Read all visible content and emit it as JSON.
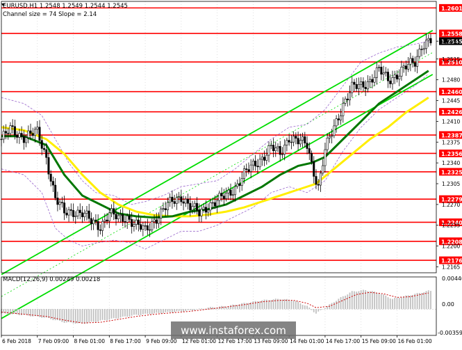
{
  "header": {
    "symbol_line": "EURUSD,H1  1.2548 1.2549 1.2544 1.2545",
    "channel_line": "Channel size = 74 Slope = 2.14"
  },
  "macd": {
    "label": "MACD(12,26,9) 0.00249 0.00218",
    "scale": [
      "0.00440",
      "0.00",
      "-0.00359"
    ]
  },
  "watermark": "www.instaforex.com",
  "colors": {
    "level_line": "#ff0000",
    "channel": "#00dd00",
    "ma_fast": "#007700",
    "ma_slow": "#ffee00",
    "envelope": "#9966cc",
    "candles": "#000000",
    "macd_hist": "#c0c0c0",
    "macd_signal": "#cc0000"
  },
  "chart_data": {
    "type": "candlestick",
    "symbol": "EURUSD",
    "timeframe": "H1",
    "ylim": [
      1.2155,
      1.2612
    ],
    "price_labels": [
      "1.2545",
      "1.2515",
      "1.2480",
      "1.2445",
      "1.2410",
      "1.2375",
      "1.2340",
      "1.2305",
      "1.2270",
      "1.2235",
      "1.2200",
      "1.2165"
    ],
    "level_lines": [
      {
        "value": 1.2601,
        "label": "1.2601"
      },
      {
        "value": 1.2558,
        "label": "1.2558"
      },
      {
        "value": 1.251,
        "label": "1.2510"
      },
      {
        "value": 1.246,
        "label": "1.2460"
      },
      {
        "value": 1.2426,
        "label": "1.2426"
      },
      {
        "value": 1.2387,
        "label": "1.2387"
      },
      {
        "value": 1.2356,
        "label": "1.2356"
      },
      {
        "value": 1.2325,
        "label": "1.2325"
      },
      {
        "value": 1.2279,
        "label": "1.2279"
      },
      {
        "value": 1.224,
        "label": "1.2240"
      },
      {
        "value": 1.2208,
        "label": "1.2208"
      },
      {
        "value": 1.2176,
        "label": "1.2176"
      }
    ],
    "current_price": {
      "value": 1.2545,
      "label": "1.2545"
    },
    "x_labels": [
      "6 Feb 2018",
      "7 Feb 09:00",
      "8 Feb 01:00",
      "8 Feb 17:00",
      "9 Feb 09:00",
      "12 Feb 01:00",
      "12 Feb 17:00",
      "13 Feb 09:00",
      "14 Feb 01:00",
      "14 Feb 17:00",
      "15 Feb 09:00",
      "16 Feb 01:00"
    ],
    "x_label_bars": [
      0,
      16,
      32,
      48,
      64,
      80,
      96,
      112,
      128,
      144,
      160,
      176
    ],
    "channel": {
      "start_bar": 0,
      "end_bar": 190,
      "start_mid": 1.2115,
      "end_mid": 1.2522,
      "half_width": 0.0037
    },
    "close_path": [
      [
        0,
        1.238
      ],
      [
        4,
        1.2395
      ],
      [
        10,
        1.2385
      ],
      [
        16,
        1.239
      ],
      [
        20,
        1.235
      ],
      [
        24,
        1.228
      ],
      [
        28,
        1.2255
      ],
      [
        32,
        1.226
      ],
      [
        36,
        1.2255
      ],
      [
        40,
        1.224
      ],
      [
        44,
        1.2235
      ],
      [
        48,
        1.2255
      ],
      [
        52,
        1.2245
      ],
      [
        56,
        1.225
      ],
      [
        60,
        1.2235
      ],
      [
        64,
        1.2225
      ],
      [
        68,
        1.2245
      ],
      [
        72,
        1.226
      ],
      [
        76,
        1.2275
      ],
      [
        80,
        1.2285
      ],
      [
        84,
        1.2265
      ],
      [
        88,
        1.2255
      ],
      [
        92,
        1.227
      ],
      [
        96,
        1.2275
      ],
      [
        100,
        1.2285
      ],
      [
        104,
        1.23
      ],
      [
        108,
        1.232
      ],
      [
        112,
        1.2335
      ],
      [
        116,
        1.235
      ],
      [
        120,
        1.2365
      ],
      [
        124,
        1.2355
      ],
      [
        128,
        1.2385
      ],
      [
        132,
        1.2375
      ],
      [
        136,
        1.237
      ],
      [
        138,
        1.234
      ],
      [
        141,
        1.23
      ],
      [
        144,
        1.236
      ],
      [
        148,
        1.24
      ],
      [
        152,
        1.244
      ],
      [
        156,
        1.2465
      ],
      [
        160,
        1.247
      ],
      [
        164,
        1.248
      ],
      [
        168,
        1.2495
      ],
      [
        172,
        1.248
      ],
      [
        176,
        1.249
      ],
      [
        180,
        1.25
      ],
      [
        184,
        1.251
      ],
      [
        187,
        1.254
      ],
      [
        190,
        1.2545
      ]
    ],
    "ma_fast_path": [
      [
        0,
        1.2385
      ],
      [
        10,
        1.2385
      ],
      [
        20,
        1.237
      ],
      [
        28,
        1.232
      ],
      [
        36,
        1.2285
      ],
      [
        44,
        1.227
      ],
      [
        52,
        1.2255
      ],
      [
        60,
        1.225
      ],
      [
        68,
        1.2248
      ],
      [
        76,
        1.225
      ],
      [
        84,
        1.2258
      ],
      [
        92,
        1.2262
      ],
      [
        100,
        1.227
      ],
      [
        108,
        1.2285
      ],
      [
        116,
        1.23
      ],
      [
        124,
        1.232
      ],
      [
        132,
        1.2335
      ],
      [
        138,
        1.234
      ],
      [
        144,
        1.235
      ],
      [
        152,
        1.238
      ],
      [
        160,
        1.241
      ],
      [
        168,
        1.244
      ],
      [
        176,
        1.246
      ],
      [
        184,
        1.248
      ],
      [
        190,
        1.2495
      ]
    ],
    "ma_slow_path": [
      [
        0,
        1.24
      ],
      [
        10,
        1.2395
      ],
      [
        20,
        1.238
      ],
      [
        28,
        1.2355
      ],
      [
        36,
        1.232
      ],
      [
        44,
        1.229
      ],
      [
        52,
        1.227
      ],
      [
        60,
        1.2258
      ],
      [
        68,
        1.2252
      ],
      [
        76,
        1.225
      ],
      [
        84,
        1.225
      ],
      [
        92,
        1.2253
      ],
      [
        100,
        1.2258
      ],
      [
        108,
        1.2265
      ],
      [
        116,
        1.2275
      ],
      [
        124,
        1.2285
      ],
      [
        132,
        1.2295
      ],
      [
        140,
        1.2305
      ],
      [
        148,
        1.233
      ],
      [
        156,
        1.2355
      ],
      [
        164,
        1.238
      ],
      [
        172,
        1.24
      ],
      [
        180,
        1.2425
      ],
      [
        190,
        1.245
      ]
    ],
    "envelope_upper_path": [
      [
        0,
        1.245
      ],
      [
        10,
        1.244
      ],
      [
        18,
        1.242
      ],
      [
        24,
        1.238
      ],
      [
        30,
        1.234
      ],
      [
        36,
        1.231
      ],
      [
        42,
        1.229
      ],
      [
        50,
        1.2285
      ],
      [
        58,
        1.227
      ],
      [
        64,
        1.2275
      ],
      [
        72,
        1.2285
      ],
      [
        80,
        1.23
      ],
      [
        88,
        1.2305
      ],
      [
        96,
        1.231
      ],
      [
        104,
        1.233
      ],
      [
        112,
        1.2355
      ],
      [
        120,
        1.238
      ],
      [
        128,
        1.24
      ],
      [
        136,
        1.2405
      ],
      [
        144,
        1.243
      ],
      [
        152,
        1.247
      ],
      [
        160,
        1.251
      ],
      [
        168,
        1.2525
      ],
      [
        176,
        1.2535
      ],
      [
        184,
        1.254
      ],
      [
        190,
        1.2545
      ]
    ],
    "envelope_lower_path": [
      [
        0,
        1.233
      ],
      [
        10,
        1.232
      ],
      [
        18,
        1.229
      ],
      [
        24,
        1.223
      ],
      [
        30,
        1.221
      ],
      [
        36,
        1.22
      ],
      [
        42,
        1.2205
      ],
      [
        50,
        1.221
      ],
      [
        58,
        1.2205
      ],
      [
        64,
        1.2195
      ],
      [
        72,
        1.221
      ],
      [
        80,
        1.2225
      ],
      [
        88,
        1.2225
      ],
      [
        96,
        1.2235
      ],
      [
        104,
        1.225
      ],
      [
        112,
        1.2265
      ],
      [
        120,
        1.229
      ],
      [
        128,
        1.23
      ],
      [
        136,
        1.229
      ],
      [
        144,
        1.231
      ],
      [
        152,
        1.236
      ],
      [
        160,
        1.24
      ],
      [
        168,
        1.243
      ],
      [
        176,
        1.245
      ],
      [
        184,
        1.247
      ],
      [
        190,
        1.249
      ]
    ],
    "macd_hist_path": [
      [
        0,
        -0.0006
      ],
      [
        10,
        -0.0008
      ],
      [
        20,
        -0.0012
      ],
      [
        28,
        -0.0018
      ],
      [
        36,
        -0.002
      ],
      [
        44,
        -0.0016
      ],
      [
        52,
        -0.0012
      ],
      [
        60,
        -0.0008
      ],
      [
        68,
        -0.0006
      ],
      [
        76,
        -0.0004
      ],
      [
        84,
        -0.0002
      ],
      [
        92,
        0.0002
      ],
      [
        100,
        0.0004
      ],
      [
        108,
        0.0008
      ],
      [
        116,
        0.0012
      ],
      [
        124,
        0.0014
      ],
      [
        130,
        0.0012
      ],
      [
        136,
        0.0004
      ],
      [
        140,
        -0.0006
      ],
      [
        144,
        0.0002
      ],
      [
        150,
        0.0014
      ],
      [
        156,
        0.0024
      ],
      [
        162,
        0.0026
      ],
      [
        168,
        0.0022
      ],
      [
        174,
        0.0014
      ],
      [
        180,
        0.0018
      ],
      [
        186,
        0.0022
      ],
      [
        190,
        0.0025
      ]
    ],
    "macd_signal_path": [
      [
        0,
        -0.0004
      ],
      [
        10,
        -0.0007
      ],
      [
        20,
        -0.001
      ],
      [
        28,
        -0.0015
      ],
      [
        36,
        -0.0019
      ],
      [
        44,
        -0.0018
      ],
      [
        52,
        -0.0014
      ],
      [
        60,
        -0.001
      ],
      [
        68,
        -0.0007
      ],
      [
        76,
        -0.0005
      ],
      [
        84,
        -0.0003
      ],
      [
        92,
        0.0
      ],
      [
        100,
        0.0003
      ],
      [
        108,
        0.0006
      ],
      [
        116,
        0.001
      ],
      [
        124,
        0.0012
      ],
      [
        130,
        0.0012
      ],
      [
        136,
        0.0008
      ],
      [
        140,
        0.0002
      ],
      [
        146,
        0.0004
      ],
      [
        152,
        0.0012
      ],
      [
        158,
        0.002
      ],
      [
        164,
        0.0023
      ],
      [
        170,
        0.0021
      ],
      [
        176,
        0.0016
      ],
      [
        182,
        0.0017
      ],
      [
        188,
        0.0021
      ],
      [
        190,
        0.0022
      ]
    ],
    "macd_range": [
      -0.00359,
      0.0044
    ]
  }
}
